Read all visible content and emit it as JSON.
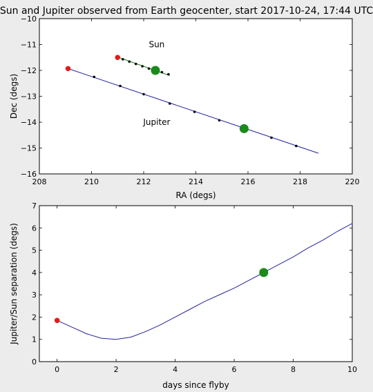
{
  "figure_title": "Sun and Jupiter observed from Earth geocenter, start 2017-10-24, 17:44 UTC",
  "colors": {
    "line": "#2020a0",
    "start_marker": "#e31a1c",
    "current_marker": "#1a8a1a",
    "tick_marker": "#000000",
    "axes_bg": "#ffffff",
    "figure_bg": "#ececec"
  },
  "chart_data": [
    {
      "type": "line",
      "xlabel": "RA (degs)",
      "ylabel": "Dec (degs)",
      "xlim": [
        208,
        220
      ],
      "ylim": [
        -16,
        -10
      ],
      "xticks": [
        208,
        210,
        212,
        214,
        216,
        218,
        220
      ],
      "yticks": [
        -16,
        -15,
        -14,
        -13,
        -12,
        -11,
        -10
      ],
      "grid": false,
      "annotations": [
        {
          "text": "Sun",
          "x": 212.5,
          "y": -11.0
        },
        {
          "text": "Jupiter",
          "x": 212.5,
          "y": -14.0
        }
      ],
      "series": [
        {
          "name": "Sun",
          "path": [
            [
              211.1,
              -11.52
            ],
            [
              213.0,
              -12.2
            ]
          ],
          "daily_points": [
            [
              211.2,
              -11.57
            ],
            [
              211.45,
              -11.66
            ],
            [
              211.7,
              -11.75
            ],
            [
              211.95,
              -11.84
            ],
            [
              212.2,
              -11.93
            ],
            [
              212.7,
              -12.07
            ],
            [
              212.95,
              -12.15
            ]
          ],
          "start": [
            211.0,
            -11.5
          ],
          "current": [
            212.45,
            -12.0
          ]
        },
        {
          "name": "Jupiter",
          "path": [
            [
              209.1,
              -11.93
            ],
            [
              218.7,
              -15.2
            ]
          ],
          "daily_points": [
            [
              210.1,
              -12.25
            ],
            [
              211.1,
              -12.6
            ],
            [
              212.0,
              -12.92
            ],
            [
              213.0,
              -13.28
            ],
            [
              213.95,
              -13.6
            ],
            [
              214.9,
              -13.93
            ],
            [
              216.9,
              -14.6
            ],
            [
              217.85,
              -14.92
            ]
          ],
          "start": [
            209.1,
            -11.93
          ],
          "current": [
            215.85,
            -14.25
          ]
        }
      ]
    },
    {
      "type": "line",
      "xlabel": "days since flyby",
      "ylabel": "Jupiter/Sun separation (degs)",
      "xlim": [
        -0.6,
        10
      ],
      "ylim": [
        0,
        7
      ],
      "xticks": [
        0,
        2,
        4,
        6,
        8,
        10
      ],
      "yticks": [
        0,
        1,
        2,
        3,
        4,
        5,
        6,
        7
      ],
      "grid": false,
      "series": [
        {
          "name": "separation",
          "x": [
            0,
            0.5,
            1.0,
            1.5,
            2.0,
            2.5,
            3.0,
            3.5,
            4.0,
            4.5,
            5.0,
            5.5,
            6.0,
            6.5,
            7.0,
            7.5,
            8.0,
            8.5,
            9.0,
            9.5,
            10.0
          ],
          "y": [
            1.85,
            1.55,
            1.25,
            1.05,
            1.0,
            1.1,
            1.35,
            1.65,
            2.0,
            2.35,
            2.7,
            3.0,
            3.3,
            3.65,
            4.0,
            4.35,
            4.7,
            5.1,
            5.45,
            5.85,
            6.2
          ],
          "start": [
            0,
            1.85
          ],
          "current": [
            7.0,
            4.0
          ]
        }
      ]
    }
  ]
}
